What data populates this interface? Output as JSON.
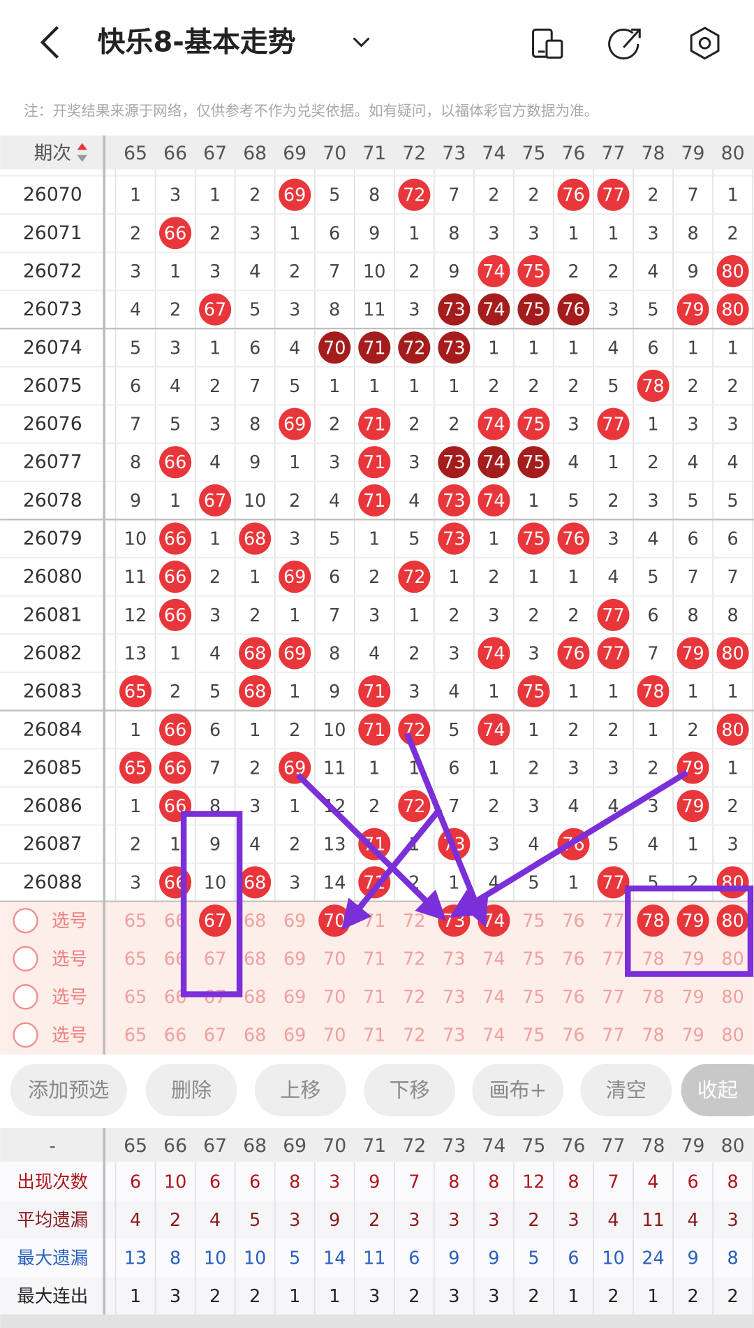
{
  "header": {
    "title": "快乐8-基本走势"
  },
  "note": "注：开奖结果来源于网络，仅供参考不作为兑奖依据。如有疑问，以福体彩官方数据为准。",
  "table": {
    "period_label": "期次",
    "columns": [
      65,
      66,
      67,
      68,
      69,
      70,
      71,
      72,
      73,
      74,
      75,
      76,
      77,
      78,
      79,
      80
    ],
    "rows": [
      {
        "period": 26070,
        "cells": [
          1,
          3,
          1,
          2,
          69,
          5,
          8,
          72,
          7,
          2,
          2,
          76,
          77,
          2,
          7,
          1
        ]
      },
      {
        "period": 26071,
        "cells": [
          2,
          66,
          2,
          3,
          1,
          6,
          9,
          1,
          8,
          3,
          3,
          1,
          1,
          3,
          8,
          2
        ]
      },
      {
        "period": 26072,
        "cells": [
          3,
          1,
          3,
          4,
          2,
          7,
          10,
          2,
          9,
          74,
          75,
          2,
          2,
          4,
          9,
          80
        ]
      },
      {
        "period": 26073,
        "cells": [
          4,
          2,
          67,
          5,
          3,
          8,
          11,
          3,
          73,
          74,
          75,
          76,
          3,
          5,
          79,
          80
        ]
      },
      {
        "period": 26074,
        "cells": [
          5,
          3,
          1,
          6,
          4,
          70,
          71,
          72,
          73,
          1,
          1,
          1,
          4,
          6,
          1,
          1
        ]
      },
      {
        "period": 26075,
        "cells": [
          6,
          4,
          2,
          7,
          5,
          1,
          1,
          1,
          1,
          2,
          2,
          2,
          5,
          78,
          2,
          2
        ]
      },
      {
        "period": 26076,
        "cells": [
          7,
          5,
          3,
          8,
          69,
          2,
          71,
          2,
          2,
          74,
          75,
          3,
          77,
          1,
          3,
          3
        ]
      },
      {
        "period": 26077,
        "cells": [
          8,
          66,
          4,
          9,
          1,
          3,
          71,
          3,
          73,
          74,
          75,
          4,
          1,
          2,
          4,
          4
        ]
      },
      {
        "period": 26078,
        "cells": [
          9,
          1,
          67,
          10,
          2,
          4,
          71,
          4,
          73,
          74,
          1,
          5,
          2,
          3,
          5,
          5
        ]
      },
      {
        "period": 26079,
        "cells": [
          10,
          66,
          1,
          68,
          3,
          5,
          1,
          5,
          73,
          1,
          75,
          76,
          3,
          4,
          6,
          6
        ]
      },
      {
        "period": 26080,
        "cells": [
          11,
          66,
          2,
          1,
          69,
          6,
          2,
          72,
          1,
          2,
          1,
          1,
          4,
          5,
          7,
          7
        ]
      },
      {
        "period": 26081,
        "cells": [
          12,
          66,
          3,
          2,
          1,
          7,
          3,
          1,
          2,
          3,
          2,
          2,
          77,
          6,
          8,
          8
        ]
      },
      {
        "period": 26082,
        "cells": [
          13,
          1,
          4,
          68,
          69,
          8,
          4,
          2,
          3,
          74,
          3,
          76,
          77,
          7,
          79,
          80
        ]
      },
      {
        "period": 26083,
        "cells": [
          65,
          2,
          5,
          68,
          1,
          9,
          71,
          3,
          4,
          1,
          75,
          1,
          1,
          78,
          1,
          1
        ]
      },
      {
        "period": 26084,
        "cells": [
          1,
          66,
          6,
          1,
          2,
          10,
          71,
          72,
          5,
          74,
          1,
          2,
          2,
          1,
          2,
          80
        ]
      },
      {
        "period": 26085,
        "cells": [
          65,
          66,
          7,
          2,
          69,
          11,
          1,
          1,
          6,
          1,
          2,
          3,
          3,
          2,
          79,
          1
        ]
      },
      {
        "period": 26086,
        "cells": [
          1,
          66,
          8,
          3,
          1,
          12,
          2,
          72,
          7,
          2,
          3,
          4,
          4,
          3,
          79,
          2
        ]
      },
      {
        "period": 26087,
        "cells": [
          2,
          1,
          9,
          4,
          2,
          13,
          71,
          1,
          73,
          3,
          4,
          76,
          5,
          4,
          1,
          3
        ]
      },
      {
        "period": 26088,
        "cells": [
          3,
          66,
          10,
          68,
          3,
          14,
          71,
          2,
          1,
          4,
          5,
          1,
          77,
          5,
          2,
          80
        ]
      }
    ]
  },
  "picker": {
    "rows": [
      {
        "label": "选号",
        "selected": [
          67,
          70,
          73,
          74,
          78,
          79,
          80
        ]
      },
      {
        "label": "选号",
        "selected": []
      },
      {
        "label": "选号",
        "selected": []
      },
      {
        "label": "选号",
        "selected": []
      }
    ]
  },
  "buttons": [
    "添加预选",
    "删除",
    "上移",
    "下移",
    "画布+",
    "清空",
    "收起"
  ],
  "stats": {
    "header": "-",
    "rows": [
      {
        "label": "出现次数",
        "color": "#b0141c",
        "values": [
          6,
          10,
          6,
          6,
          8,
          3,
          9,
          7,
          8,
          8,
          12,
          8,
          7,
          4,
          6,
          8
        ]
      },
      {
        "label": "平均遗漏",
        "color": "#8a1a1a",
        "values": [
          4,
          2,
          4,
          5,
          3,
          9,
          2,
          3,
          3,
          3,
          2,
          3,
          4,
          11,
          4,
          3
        ]
      },
      {
        "label": "最大遗漏",
        "color": "#2a5fc0",
        "values": [
          13,
          8,
          10,
          10,
          5,
          14,
          11,
          6,
          9,
          9,
          5,
          6,
          10,
          24,
          9,
          8
        ]
      },
      {
        "label": "最大连出",
        "color": "#222222",
        "values": [
          1,
          3,
          2,
          2,
          1,
          1,
          3,
          2,
          3,
          3,
          2,
          1,
          2,
          1,
          2,
          2
        ]
      }
    ]
  }
}
